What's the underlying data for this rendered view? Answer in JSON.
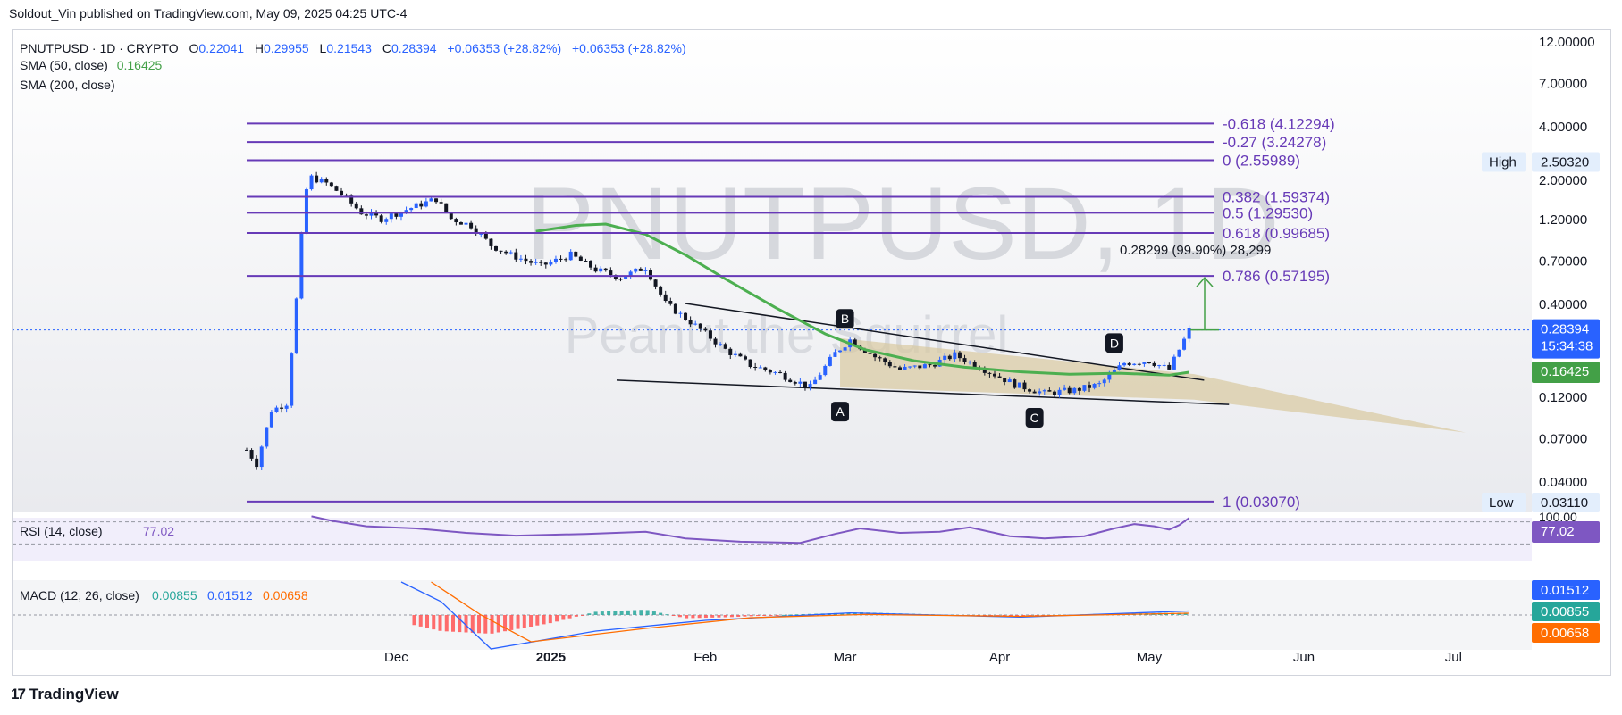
{
  "publisher_line": "Soldout_Vin published on TradingView.com, May 09, 2025 04:25 UTC-4",
  "footer": {
    "logo_text": "17",
    "brand": "TradingView"
  },
  "colors": {
    "up": "#2962ff",
    "down": "#131722",
    "fib": "#673ab7",
    "sma50": "#4caf50",
    "rsi": "#7e57c2",
    "macd": "#2962ff",
    "signal": "#ff6d00",
    "hist_up": "#26a69a",
    "hist_down": "#ff5252",
    "price_tag": "#2962ff",
    "sma_tag": "#43a047",
    "wedge_fill": "#d8c9a0",
    "arrow": "#43a047"
  },
  "header": {
    "symbol": "PNUTPUSD · 1D · CRYPTO",
    "o_label": "O",
    "o": "0.22041",
    "h_label": "H",
    "h": "0.29955",
    "l_label": "L",
    "l": "0.21543",
    "c_label": "C",
    "c": "0.28394",
    "chg1": "+0.06353 (+28.82%)",
    "chg2": "+0.06353 (+28.82%)",
    "sma50_label": "SMA (50, close)",
    "sma50_value": "0.16425",
    "sma200_label": "SMA (200, close)"
  },
  "watermark": {
    "symbol": "PNUTPUSD, 1D",
    "name": "Peanut the Squirrel"
  },
  "chart_data": [
    {
      "type": "candlestick",
      "scale": "log",
      "y_ticks": [
        "12.00000",
        "7.00000",
        "4.00000",
        "2.00000",
        "1.20000",
        "0.70000",
        "0.40000",
        "0.12000",
        "0.07000",
        "0.04000"
      ],
      "ylim": [
        0.028,
        13
      ],
      "x_ticks": [
        {
          "label": "Dec",
          "date": "2024-12-01"
        },
        {
          "label": "2025",
          "date": "2025-01-01"
        },
        {
          "label": "Feb",
          "date": "2025-02-01"
        },
        {
          "label": "Mar",
          "date": "2025-03-01"
        },
        {
          "label": "Apr",
          "date": "2025-04-01"
        },
        {
          "label": "May",
          "date": "2025-05-01"
        },
        {
          "label": "Jun",
          "date": "2025-06-01"
        },
        {
          "label": "Jul",
          "date": "2025-07-01"
        }
      ],
      "close_path": [
        [
          "2024-11-01",
          0.06
        ],
        [
          "2024-11-03",
          0.05
        ],
        [
          "2024-11-06",
          0.1
        ],
        [
          "2024-11-09",
          0.11
        ],
        [
          "2024-11-11",
          0.42
        ],
        [
          "2024-11-12",
          0.95
        ],
        [
          "2024-11-13",
          1.75
        ],
        [
          "2024-11-14",
          2.05
        ],
        [
          "2024-11-17",
          1.9
        ],
        [
          "2024-11-20",
          1.65
        ],
        [
          "2024-11-24",
          1.3
        ],
        [
          "2024-11-28",
          1.2
        ],
        [
          "2024-12-03",
          1.35
        ],
        [
          "2024-12-06",
          1.45
        ],
        [
          "2024-12-09",
          1.55
        ],
        [
          "2024-12-12",
          1.2
        ],
        [
          "2024-12-16",
          1.1
        ],
        [
          "2024-12-20",
          0.85
        ],
        [
          "2024-12-24",
          0.75
        ],
        [
          "2024-12-30",
          0.65
        ],
        [
          "2025-01-05",
          0.75
        ],
        [
          "2025-01-10",
          0.62
        ],
        [
          "2025-01-15",
          0.56
        ],
        [
          "2025-01-20",
          0.64
        ],
        [
          "2025-01-24",
          0.4
        ],
        [
          "2025-01-30",
          0.3
        ],
        [
          "2025-02-05",
          0.22
        ],
        [
          "2025-02-10",
          0.18
        ],
        [
          "2025-02-16",
          0.16
        ],
        [
          "2025-02-22",
          0.135
        ],
        [
          "2025-02-27",
          0.21
        ],
        [
          "2025-03-02",
          0.25
        ],
        [
          "2025-03-07",
          0.2
        ],
        [
          "2025-03-12",
          0.17
        ],
        [
          "2025-03-18",
          0.18
        ],
        [
          "2025-03-23",
          0.205
        ],
        [
          "2025-03-29",
          0.17
        ],
        [
          "2025-04-04",
          0.14
        ],
        [
          "2025-04-10",
          0.125
        ],
        [
          "2025-04-16",
          0.13
        ],
        [
          "2025-04-21",
          0.14
        ],
        [
          "2025-04-26",
          0.185
        ],
        [
          "2025-05-01",
          0.19
        ],
        [
          "2025-05-05",
          0.17
        ],
        [
          "2025-05-07",
          0.22
        ],
        [
          "2025-05-09",
          0.284
        ]
      ],
      "sma50": [
        [
          "2024-12-29",
          1.02
        ],
        [
          "2025-01-06",
          1.1
        ],
        [
          "2025-01-12",
          1.12
        ],
        [
          "2025-01-20",
          0.98
        ],
        [
          "2025-01-28",
          0.75
        ],
        [
          "2025-02-05",
          0.55
        ],
        [
          "2025-02-15",
          0.38
        ],
        [
          "2025-02-25",
          0.27
        ],
        [
          "2025-03-05",
          0.22
        ],
        [
          "2025-03-15",
          0.19
        ],
        [
          "2025-03-25",
          0.175
        ],
        [
          "2025-04-05",
          0.165
        ],
        [
          "2025-04-15",
          0.16
        ],
        [
          "2025-04-25",
          0.162
        ],
        [
          "2025-05-05",
          0.158
        ],
        [
          "2025-05-09",
          0.164
        ]
      ],
      "fib_levels": [
        {
          "ratio": "-0.618",
          "value": 4.12294,
          "label": "-0.618 (4.12294)"
        },
        {
          "ratio": "-0.27",
          "value": 3.24278,
          "label": "-0.27 (3.24278)"
        },
        {
          "ratio": "0",
          "value": 2.55989,
          "label": "0 (2.55989)"
        },
        {
          "ratio": "0.382",
          "value": 1.59374,
          "label": "0.382 (1.59374)"
        },
        {
          "ratio": "0.5",
          "value": 1.2953,
          "label": "0.5 (1.29530)"
        },
        {
          "ratio": "0.618",
          "value": 0.99685,
          "label": "0.618 (0.99685)"
        },
        {
          "ratio": "0.786",
          "value": 0.57195,
          "label": "0.786 (0.57195)"
        },
        {
          "ratio": "1",
          "value": 0.0307,
          "label": "1 (0.03070)"
        }
      ],
      "pattern_points": [
        {
          "label": "A",
          "date": "2025-02-28",
          "price": 0.13
        },
        {
          "label": "B",
          "date": "2025-03-01",
          "price": 0.26
        },
        {
          "label": "C",
          "date": "2025-04-08",
          "price": 0.12
        },
        {
          "label": "D",
          "date": "2025-04-24",
          "price": 0.19
        }
      ],
      "measure_label": "0.28299 (99.90%) 28,299",
      "high_label": "High",
      "high_value": "2.50320",
      "low_label": "Low",
      "low_value": "0.03110",
      "last_price": "0.28394",
      "countdown": "15:34:38",
      "sma50_value": "0.16425"
    },
    {
      "type": "line",
      "name": "RSI (14, close)",
      "value": "77.02",
      "axis_label": "100.00",
      "ylim": [
        0,
        100
      ],
      "bands": [
        30,
        70
      ],
      "points": [
        [
          "2024-11-14",
          80
        ],
        [
          "2024-11-18",
          72
        ],
        [
          "2024-11-25",
          62
        ],
        [
          "2024-12-05",
          58
        ],
        [
          "2024-12-15",
          50
        ],
        [
          "2024-12-25",
          45
        ],
        [
          "2025-01-08",
          48
        ],
        [
          "2025-01-20",
          52
        ],
        [
          "2025-01-28",
          40
        ],
        [
          "2025-02-08",
          34
        ],
        [
          "2025-02-20",
          32
        ],
        [
          "2025-02-27",
          48
        ],
        [
          "2025-03-04",
          58
        ],
        [
          "2025-03-12",
          50
        ],
        [
          "2025-03-20",
          52
        ],
        [
          "2025-03-26",
          60
        ],
        [
          "2025-04-03",
          44
        ],
        [
          "2025-04-10",
          40
        ],
        [
          "2025-04-18",
          44
        ],
        [
          "2025-04-24",
          58
        ],
        [
          "2025-04-28",
          66
        ],
        [
          "2025-05-02",
          62
        ],
        [
          "2025-05-05",
          56
        ],
        [
          "2025-05-07",
          64
        ],
        [
          "2025-05-09",
          77
        ]
      ]
    },
    {
      "type": "histogram+line",
      "name": "MACD (12, 26, close)",
      "values": {
        "hist": "0.00855",
        "macd": "0.01512",
        "signal": "0.00658"
      },
      "macd_line": [
        [
          "2024-12-02",
          0.22
        ],
        [
          "2024-12-10",
          0.05
        ],
        [
          "2024-12-20",
          -0.15
        ],
        [
          "2025-01-10",
          -0.06
        ],
        [
          "2025-02-01",
          -0.02
        ],
        [
          "2025-03-02",
          0.008
        ],
        [
          "2025-04-05",
          -0.008
        ],
        [
          "2025-05-09",
          0.015
        ]
      ],
      "signal_line": [
        [
          "2024-12-08",
          0.22
        ],
        [
          "2024-12-18",
          0.0
        ],
        [
          "2024-12-28",
          -0.1
        ],
        [
          "2025-01-20",
          -0.05
        ],
        [
          "2025-02-10",
          -0.01
        ],
        [
          "2025-03-05",
          0.002
        ],
        [
          "2025-04-05",
          -0.005
        ],
        [
          "2025-05-09",
          0.0066
        ]
      ]
    }
  ]
}
